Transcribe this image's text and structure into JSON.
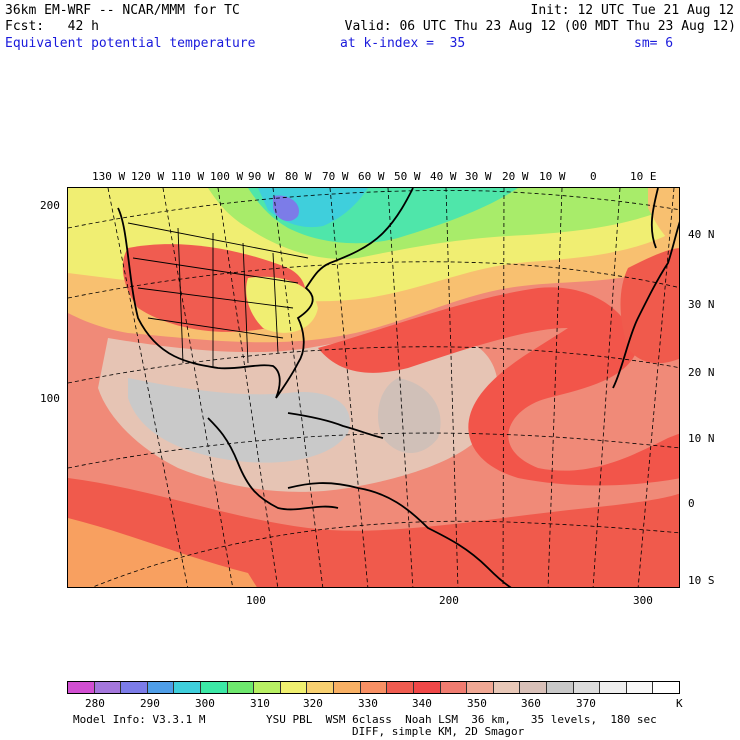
{
  "header": {
    "line1_left": "36km EM-WRF -- NCAR/MMM for TC",
    "line1_right": "Init: 12 UTC Tue 21 Aug 12",
    "line2_left": "Fcst:   42 h",
    "line2_right": "Valid: 06 UTC Thu 23 Aug 12 (00 MDT Thu 23 Aug 12)",
    "line3_field": "Equivalent potential temperature",
    "line3_level": "at k-index =  35",
    "line3_smooth": "sm= 6"
  },
  "map": {
    "lon_labels": [
      "130 W",
      "120 W",
      "110 W",
      "100 W",
      "90 W",
      "80 W",
      "70 W",
      "60 W",
      "50 W",
      "40 W",
      "30 W",
      "20 W",
      "10 W",
      "0",
      "10 E"
    ],
    "lat_labels": [
      "40 N",
      "30 N",
      "20 N",
      "10 N",
      "0",
      "10 S"
    ],
    "left_ticks": [
      "200",
      "100"
    ],
    "bottom_ticks": [
      "100",
      "200",
      "300"
    ]
  },
  "colorbar": {
    "colors": [
      "#d24fd2",
      "#a477dc",
      "#7c7ce8",
      "#4f9ee8",
      "#3fcfdc",
      "#3ce8a6",
      "#6ee86e",
      "#b8f064",
      "#f0f070",
      "#f8d070",
      "#f8b064",
      "#f89064",
      "#f05c50",
      "#f04848",
      "#f07c70",
      "#f0a894",
      "#e8c8b8",
      "#d8c0b8",
      "#c8c8c8",
      "#dcdcdc",
      "#eeeeee",
      "#f8f8f8",
      "#ffffff"
    ],
    "labels": [
      "280",
      "290",
      "300",
      "310",
      "320",
      "330",
      "340",
      "350",
      "360",
      "370",
      "K"
    ]
  },
  "footer": {
    "model_info": "Model Info: V3.3.1 M",
    "physics": "YSU PBL  WSM 6class  Noah LSM  36 km,   35 levels,  180 sec",
    "diff": "DIFF, simple KM, 2D Smagor"
  }
}
